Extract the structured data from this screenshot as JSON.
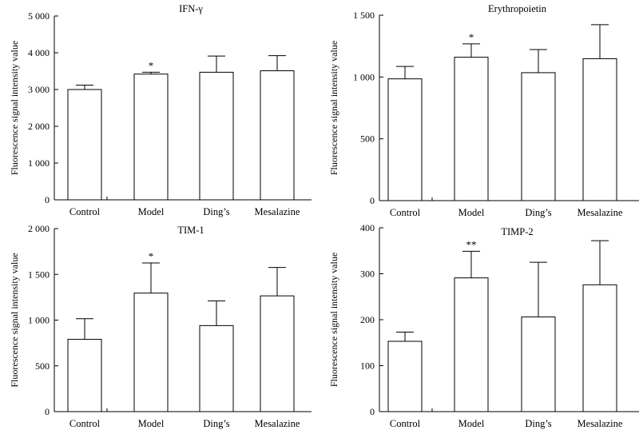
{
  "chart_data": [
    {
      "type": "bar",
      "title": "IFN-γ",
      "ylabel": "Fluorescence signal intensity value",
      "xlabel": "",
      "categories": [
        "Control",
        "Model",
        "Ding’s",
        "Mesalazine"
      ],
      "values": [
        3000,
        3420,
        3470,
        3510
      ],
      "errors": [
        120,
        50,
        440,
        410
      ],
      "significance": [
        "",
        "*",
        "",
        ""
      ],
      "ylim": [
        0,
        5000
      ],
      "yticks": [
        0,
        1000,
        2000,
        3000,
        4000,
        5000
      ],
      "ytick_labels": [
        "0",
        "1 000",
        "2 000",
        "3 000",
        "4 000",
        "5 000"
      ],
      "grid": false
    },
    {
      "type": "bar",
      "title": "Erythropoietin",
      "ylabel": "Fluorescence signal intensity value",
      "xlabel": "",
      "categories": [
        "Control",
        "Model",
        "Ding’s",
        "Mesalazine"
      ],
      "values": [
        985,
        1160,
        1035,
        1148
      ],
      "errors": [
        100,
        108,
        187,
        275
      ],
      "significance": [
        "",
        "*",
        "",
        ""
      ],
      "ylim": [
        0,
        1500
      ],
      "yticks": [
        0,
        500,
        1000,
        1500
      ],
      "ytick_labels": [
        "0",
        "500",
        "1 000",
        "1 500"
      ],
      "grid": false
    },
    {
      "type": "bar",
      "title": "TIM-1",
      "ylabel": "Fluorescence signal intensity value",
      "xlabel": "",
      "categories": [
        "Control",
        "Model",
        "Ding’s",
        "Mesalazine"
      ],
      "values": [
        790,
        1295,
        940,
        1265
      ],
      "errors": [
        225,
        330,
        270,
        310
      ],
      "significance": [
        "",
        "*",
        "",
        ""
      ],
      "ylim": [
        0,
        2000
      ],
      "yticks": [
        0,
        500,
        1000,
        1500,
        2000
      ],
      "ytick_labels": [
        "0",
        "500",
        "1 000",
        "1 500",
        "2 000"
      ],
      "grid": false
    },
    {
      "type": "bar",
      "title": "TIMP-2",
      "ylabel": "Fluorescence signal intensity value",
      "xlabel": "",
      "categories": [
        "Control",
        "Model",
        "Ding’s",
        "Mesalazine"
      ],
      "values": [
        153,
        291,
        206,
        276
      ],
      "errors": [
        20,
        58,
        119,
        96
      ],
      "significance": [
        "",
        "**",
        "",
        ""
      ],
      "ylim": [
        0,
        400
      ],
      "yticks": [
        0,
        100,
        200,
        300,
        400
      ],
      "ytick_labels": [
        "0",
        "100",
        "200",
        "300",
        "400"
      ],
      "grid": false
    }
  ]
}
